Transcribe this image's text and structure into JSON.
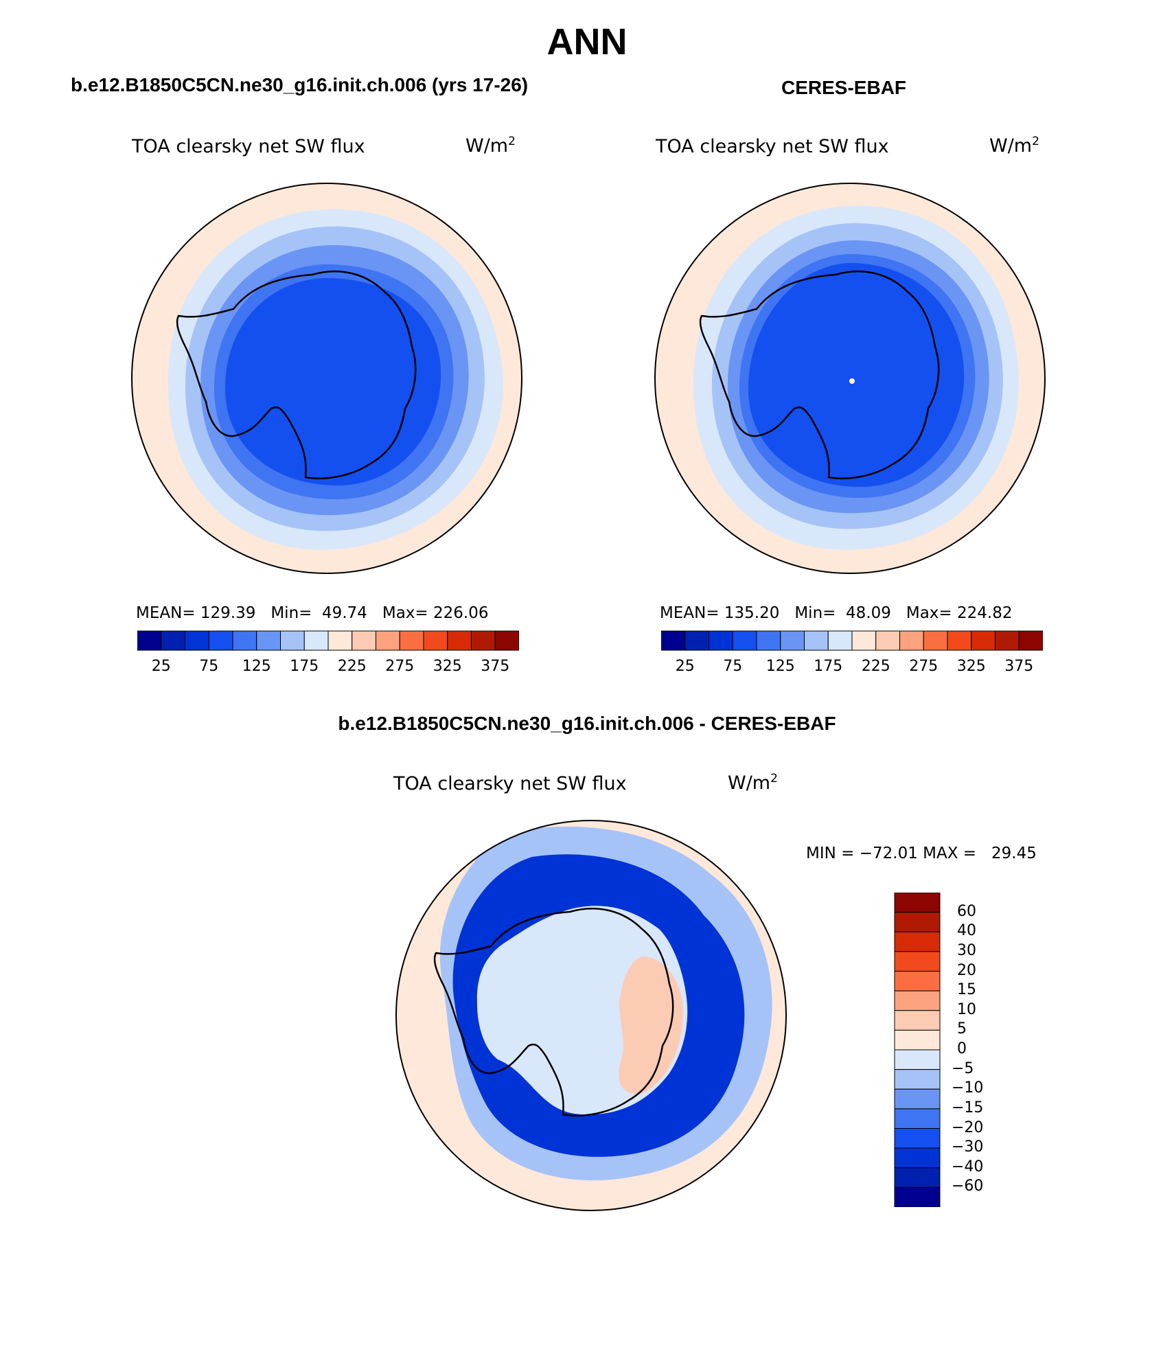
{
  "figure": {
    "title": "ANN"
  },
  "panels": {
    "model": {
      "title": "b.e12.B1850C5CN.ne30_g16.init.ch.006 (yrs 17-26)",
      "variable": "TOA clearsky net SW flux",
      "units_base": "W/m",
      "units_exp": "2",
      "stats": {
        "mean_label": "MEAN=",
        "mean": "129.39",
        "min_label": "Min=",
        "min": "49.74",
        "max_label": "Max=",
        "max": "226.06"
      }
    },
    "obs": {
      "title": "CERES-EBAF",
      "variable": "TOA clearsky net SW flux",
      "units_base": "W/m",
      "units_exp": "2",
      "stats": {
        "mean_label": "MEAN=",
        "mean": "135.20",
        "min_label": "Min=",
        "min": "48.09",
        "max_label": "Max=",
        "max": "224.82"
      }
    },
    "diff": {
      "title": "b.e12.B1850C5CN.ne30_g16.init.ch.006 - CERES-EBAF",
      "variable": "TOA clearsky net SW flux",
      "units_base": "W/m",
      "units_exp": "2",
      "minmax": "MIN = −72.01 MAX =   29.45"
    }
  },
  "colorbars": {
    "abs": {
      "colors": [
        "#00008f",
        "#0020b0",
        "#0033d6",
        "#1450ef",
        "#3f74f2",
        "#6a95f4",
        "#a6c3f8",
        "#d9e7fb",
        "#fde8d9",
        "#fccbb4",
        "#fca27e",
        "#fb6e42",
        "#f24a1d",
        "#d92a07",
        "#b01a05",
        "#8c0500"
      ],
      "tick_labels": [
        "25",
        "75",
        "125",
        "175",
        "225",
        "275",
        "325",
        "375"
      ]
    },
    "diff": {
      "colors_top_to_bottom": [
        "#8c0500",
        "#b01a05",
        "#d92a07",
        "#f24a1d",
        "#fb6e42",
        "#fca27e",
        "#fccbb4",
        "#fde8d9",
        "#d9e7fb",
        "#a6c3f8",
        "#6a95f4",
        "#3f74f2",
        "#1450ef",
        "#0033d6",
        "#0020b0",
        "#00008f"
      ],
      "tick_labels_top_to_bottom": [
        "60",
        "40",
        "30",
        "20",
        "15",
        "10",
        "5",
        "0",
        "−5",
        "−10",
        "−15",
        "−20",
        "−30",
        "−40",
        "−60"
      ]
    }
  },
  "map_colors": {
    "outer_band": "#fde8d9",
    "band_1": "#d9e7fb",
    "band_2": "#a6c3f8",
    "band_3": "#6a95f4",
    "band_4": "#3f74f2",
    "interior": "#1450ef",
    "diff_positive": "#fccbb4",
    "diff_strong_neg": "#0033d6"
  }
}
